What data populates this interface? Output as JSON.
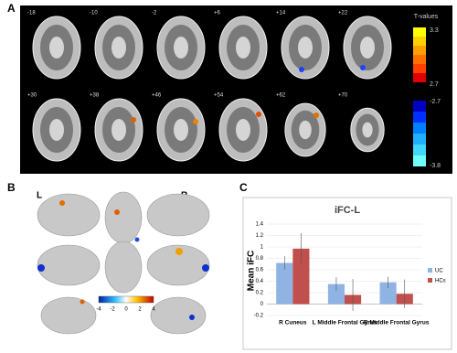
{
  "panel_a": {
    "label": "A",
    "slices": [
      "-18",
      "-10",
      "-2",
      "+6",
      "+14",
      "+22",
      "+30",
      "+38",
      "+46",
      "+54",
      "+62",
      "+70"
    ],
    "colorbar": {
      "title": "T-values",
      "labels": [
        "3.3",
        "2.7",
        "-2.7",
        "-3.8"
      ]
    }
  },
  "panel_b": {
    "label": "B",
    "left": "L",
    "right": "R",
    "colorbar_labels": [
      "-4",
      "-2",
      "0",
      "2",
      "4"
    ]
  },
  "panel_c": {
    "label": "C"
  },
  "chart_data": {
    "type": "bar",
    "title": "iFC-L",
    "y_label": "Mean iFC",
    "categories": [
      "R Cuneus",
      "L Middle Frontal Gyrus",
      "R Middle Frontal Gyrus"
    ],
    "series": [
      {
        "name": "UC",
        "color": "#8fb4e3",
        "values": [
          0.72,
          0.35,
          0.38
        ],
        "errors": [
          0.12,
          0.12,
          0.1
        ]
      },
      {
        "name": "HCs",
        "color": "#c0504d",
        "values": [
          0.97,
          0.16,
          0.18
        ],
        "errors": [
          0.27,
          0.28,
          0.25
        ]
      }
    ],
    "ylim": [
      -0.2,
      1.4
    ],
    "yticks": [
      -0.2,
      0,
      0.2,
      0.4,
      0.6,
      0.8,
      1,
      1.2,
      1.4
    ],
    "grid": true,
    "legend": "right"
  }
}
